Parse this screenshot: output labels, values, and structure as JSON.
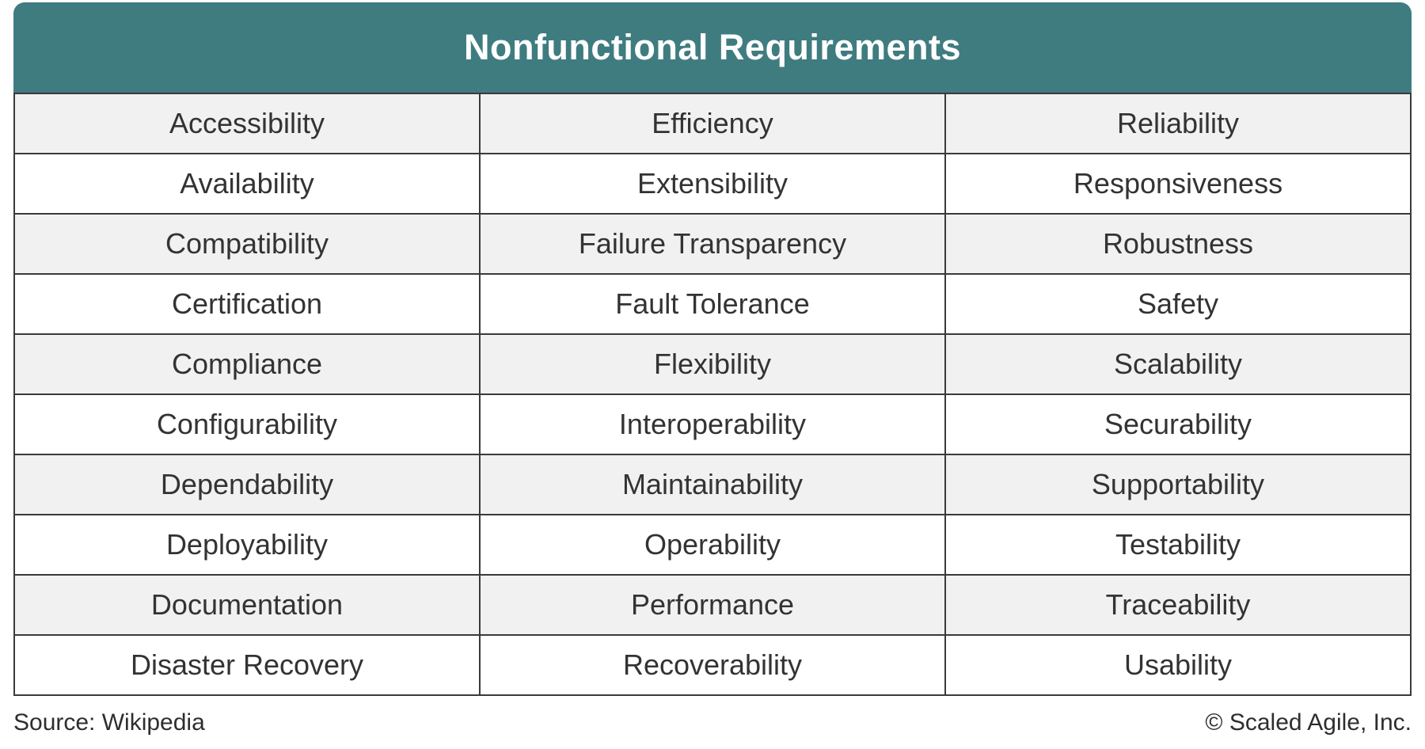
{
  "chart_data": {
    "type": "table",
    "title": "Nonfunctional Requirements",
    "columns": 3,
    "rows": [
      [
        "Accessibility",
        "Efficiency",
        "Reliability"
      ],
      [
        "Availability",
        "Extensibility",
        "Responsiveness"
      ],
      [
        "Compatibility",
        "Failure Transparency",
        "Robustness"
      ],
      [
        "Certification",
        "Fault Tolerance",
        "Safety"
      ],
      [
        "Compliance",
        "Flexibility",
        "Scalability"
      ],
      [
        "Configurability",
        "Interoperability",
        "Securability"
      ],
      [
        "Dependability",
        "Maintainability",
        "Supportability"
      ],
      [
        "Deployability",
        "Operability",
        "Testability"
      ],
      [
        "Documentation",
        "Performance",
        "Traceability"
      ],
      [
        "Disaster Recovery",
        "Recoverability",
        "Usability"
      ]
    ],
    "layout_hints": {
      "header_style": "teal banner with rounded top corners, centered bold white title",
      "striping": "odd rows light gray, even rows white",
      "grid": "dark 2px borders on all body cells, no border on header banner"
    }
  },
  "footer": {
    "source": "Source: Wikipedia",
    "copyright": "© Scaled Agile, Inc."
  },
  "colors": {
    "header_bg": "#3F7C80",
    "row_alt_bg": "#F1F1F1",
    "row_bg": "#FFFFFF",
    "border": "#3A3A3A",
    "text": "#333333",
    "title_text": "#FFFFFF",
    "footer_text": "#2E2E2E",
    "page_bg": "#FFFFFF"
  }
}
